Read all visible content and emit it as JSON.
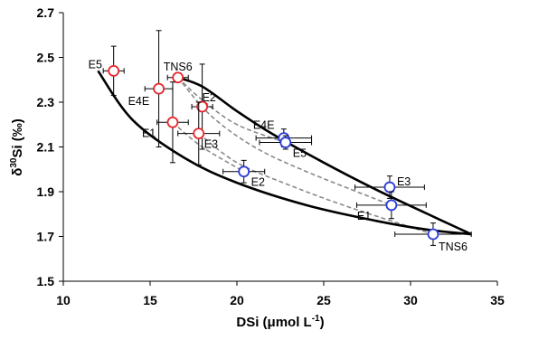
{
  "chart_data": {
    "type": "scatter",
    "title": "",
    "xlabel": "DSi (μmol L",
    "xlabel_sup": "-1",
    "xlabel_end": ")",
    "ylabel": "δ",
    "ylabel_sup": "30",
    "ylabel_end": "Si (‰)",
    "xlim": [
      10,
      35
    ],
    "ylim": [
      1.5,
      2.7
    ],
    "xticks": [
      "10",
      "15",
      "20",
      "25",
      "30",
      "35"
    ],
    "yticks": [
      "1.5",
      "1.7",
      "1.9",
      "2.1",
      "2.3",
      "2.5",
      "2.7"
    ],
    "grid": false,
    "series": [
      {
        "color": "#e8242b",
        "points": [
          {
            "label": "E5",
            "x": 12.9,
            "y": 2.44,
            "xerr": 0.6,
            "yerr": 0.11
          },
          {
            "label": "E4E",
            "x": 15.5,
            "y": 2.36,
            "xerr": 0.8,
            "yerr": 0.26
          },
          {
            "label": "TNS6",
            "x": 16.6,
            "y": 2.41,
            "xerr": 0.6,
            "yerr": 0.0
          },
          {
            "label": "E1",
            "x": 16.3,
            "y": 2.21,
            "xerr": 0.9,
            "yerr": 0.18
          },
          {
            "label": "E2",
            "x": 18.0,
            "y": 2.28,
            "xerr": 0.6,
            "yerr": 0.19
          },
          {
            "label": "E3",
            "x": 17.8,
            "y": 2.16,
            "xerr": 1.2,
            "yerr": 0.14
          }
        ]
      },
      {
        "color": "#2a3bd8",
        "points": [
          {
            "label": "E2",
            "x": 20.4,
            "y": 1.99,
            "xerr": 1.2,
            "yerr": 0.05
          },
          {
            "label": "E4E",
            "x": 22.7,
            "y": 2.14,
            "xerr": 1.6,
            "yerr": 0.04
          },
          {
            "label": "E5",
            "x": 22.8,
            "y": 2.12,
            "xerr": 1.5,
            "yerr": 0.03
          },
          {
            "label": "E3",
            "x": 28.8,
            "y": 1.92,
            "xerr": 2.0,
            "yerr": 0.05
          },
          {
            "label": "E1",
            "x": 28.9,
            "y": 1.84,
            "xerr": 2.0,
            "yerr": 0.06
          },
          {
            "label": "TNS6",
            "x": 31.3,
            "y": 1.71,
            "xerr": 2.2,
            "yerr": 0.05
          }
        ]
      }
    ],
    "envelope_curves": [
      {
        "style": "solid",
        "x": [
          12.0,
          14.0,
          17.0,
          20.0,
          24.0,
          28.0,
          31.0,
          33.5
        ],
        "y": [
          2.44,
          2.22,
          2.05,
          1.94,
          1.84,
          1.77,
          1.73,
          1.71
        ]
      },
      {
        "style": "solid",
        "x": [
          16.6,
          18.0,
          20.0,
          22.0,
          25.0,
          28.0,
          31.0,
          33.5
        ],
        "y": [
          2.41,
          2.37,
          2.26,
          2.16,
          2.03,
          1.91,
          1.8,
          1.71
        ]
      }
    ],
    "mixing_curves": [
      {
        "style": "dashed",
        "x": [
          16.6,
          18.0,
          20.0,
          22.8
        ],
        "y": [
          2.41,
          2.31,
          2.2,
          2.12
        ]
      },
      {
        "style": "dashed",
        "x": [
          16.6,
          18.5,
          21.0,
          24.0,
          28.9
        ],
        "y": [
          2.41,
          2.24,
          2.1,
          1.99,
          1.84
        ]
      },
      {
        "style": "dashed",
        "x": [
          16.3,
          18.0,
          20.4
        ],
        "y": [
          2.21,
          2.1,
          1.99
        ]
      },
      {
        "style": "dashed",
        "x": [
          17.8,
          20.0,
          23.0,
          26.5,
          31.3
        ],
        "y": [
          2.16,
          2.03,
          1.93,
          1.83,
          1.71
        ]
      }
    ]
  }
}
